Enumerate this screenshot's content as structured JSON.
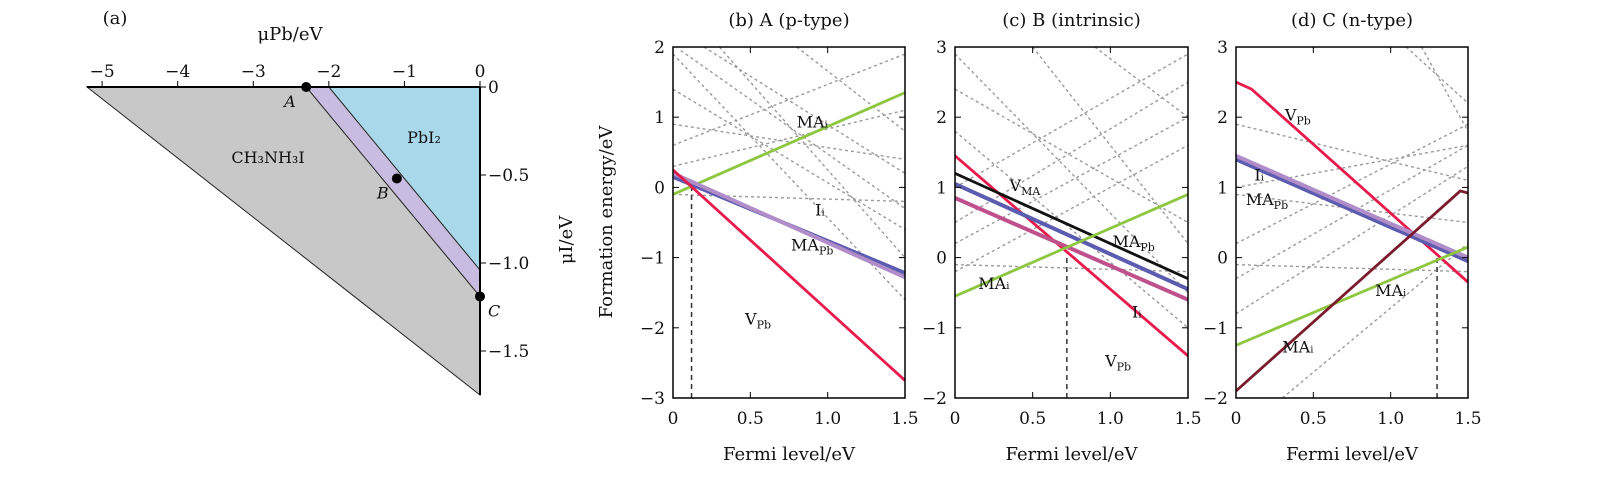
{
  "chart_data": [
    {
      "id": "a",
      "type": "area",
      "panel_label": "(a)",
      "xlabel": "μPb/eV",
      "ylabel": "μI/eV",
      "xlim": [
        -5.2,
        0
      ],
      "ylim": [
        -1.75,
        0
      ],
      "xticks": [
        "−5",
        "−4",
        "−3",
        "−2",
        "−1",
        "0"
      ],
      "yticks": [
        "0",
        "−0.5",
        "−1.0",
        "−1.5"
      ],
      "regions": [
        {
          "name": "CH3NH3I",
          "label": "CH₃NH₃I",
          "color": "#c8c8c8"
        },
        {
          "name": "stable",
          "color": "#c8bde0"
        },
        {
          "name": "PbI2",
          "label": "PbI₂",
          "color": "#a8d8ea"
        }
      ],
      "points": [
        {
          "label": "A",
          "x": -2.3,
          "y": 0
        },
        {
          "label": "B",
          "x": -1.1,
          "y": -0.52
        },
        {
          "label": "C",
          "x": 0,
          "y": -1.19
        }
      ]
    },
    {
      "id": "b",
      "type": "line",
      "title": "(b) A (p-type)",
      "xlabel": "Fermi level/eV",
      "ylabel": "Formation energy/eV",
      "xlim": [
        0,
        1.5
      ],
      "ylim": [
        -3,
        2
      ],
      "xticks": [
        "0",
        "0.5",
        "1.0",
        "1.5"
      ],
      "yticks": [
        "−3",
        "−2",
        "−1",
        "0",
        "1",
        "2"
      ],
      "fermi_level": 0.12,
      "series": [
        {
          "name": "MAᵢ",
          "color": "#8dc63f",
          "points": [
            [
              0,
              -0.1
            ],
            [
              1.5,
              1.35
            ]
          ]
        },
        {
          "name": "Iᵢ",
          "color": "#5b5bb0",
          "points": [
            [
              0,
              0.15
            ],
            [
              1.5,
              -1.22
            ]
          ]
        },
        {
          "name": "MAPb",
          "color": "#b08cc8",
          "points": [
            [
              0,
              0.2
            ],
            [
              1.5,
              -1.28
            ]
          ]
        },
        {
          "name": "VPb",
          "color": "#e8194b",
          "points": [
            [
              0,
              0.25
            ],
            [
              1.5,
              -2.75
            ]
          ]
        }
      ],
      "labels": [
        {
          "text": "MAᵢ",
          "x": 0.9,
          "y": 0.85
        },
        {
          "text": "Iᵢ",
          "x": 0.95,
          "y": -0.4
        },
        {
          "text": "MAPb",
          "x": 0.9,
          "y": -0.9
        },
        {
          "text": "VPb",
          "x": 0.55,
          "y": -1.95
        }
      ]
    },
    {
      "id": "c",
      "type": "line",
      "title": "(c) B (intrinsic)",
      "xlabel": "Fermi level/eV",
      "ylabel": "",
      "xlim": [
        0,
        1.5
      ],
      "ylim": [
        -2,
        3
      ],
      "xticks": [
        "0",
        "0.5",
        "1.0",
        "1.5"
      ],
      "yticks": [
        "−2",
        "−1",
        "0",
        "1",
        "2",
        "3"
      ],
      "fermi_level": 0.72,
      "series": [
        {
          "name": "VPb",
          "color": "#e8194b",
          "points": [
            [
              0,
              1.45
            ],
            [
              1.5,
              -1.4
            ]
          ]
        },
        {
          "name": "VMA",
          "color": "#111111",
          "points": [
            [
              0,
              1.2
            ],
            [
              1.5,
              -0.3
            ]
          ]
        },
        {
          "name": "MAPb",
          "color": "#5b5bb0",
          "points": [
            [
              0,
              1.05
            ],
            [
              1.5,
              -0.45
            ]
          ]
        },
        {
          "name": "Iᵢ",
          "color": "#c0508c",
          "points": [
            [
              0,
              0.85
            ],
            [
              1.5,
              -0.6
            ]
          ]
        },
        {
          "name": "MAᵢ",
          "color": "#8dc63f",
          "points": [
            [
              0,
              -0.55
            ],
            [
              1.5,
              0.9
            ]
          ]
        }
      ],
      "labels": [
        {
          "text": "VMA",
          "x": 0.45,
          "y": 0.95
        },
        {
          "text": "MAPb",
          "x": 1.15,
          "y": 0.15
        },
        {
          "text": "MAᵢ",
          "x": 0.25,
          "y": -0.45
        },
        {
          "text": "Iᵢ",
          "x": 1.17,
          "y": -0.85
        },
        {
          "text": "VPb",
          "x": 1.05,
          "y": -1.55
        }
      ]
    },
    {
      "id": "d",
      "type": "line",
      "title": "(d) C (n-type)",
      "xlabel": "Fermi level/eV",
      "ylabel": "",
      "xlim": [
        0,
        1.5
      ],
      "ylim": [
        -2,
        3
      ],
      "xticks": [
        "0",
        "0.5",
        "1.0",
        "1.5"
      ],
      "yticks": [
        "−2",
        "−1",
        "0",
        "1",
        "2",
        "3"
      ],
      "fermi_level": 1.3,
      "series": [
        {
          "name": "VPb",
          "color": "#e8194b",
          "points": [
            [
              0,
              2.5
            ],
            [
              0.1,
              2.4
            ],
            [
              1.5,
              -0.35
            ]
          ]
        },
        {
          "name": "Iᵢ",
          "color": "#5b5bb0",
          "points": [
            [
              0,
              1.4
            ],
            [
              1.5,
              -0.05
            ]
          ]
        },
        {
          "name": "MAPb",
          "color": "#b08cc8",
          "points": [
            [
              0,
              1.45
            ],
            [
              1.5,
              0.0
            ]
          ]
        },
        {
          "name": "MAᵢ",
          "color": "#8dc63f",
          "points": [
            [
              0,
              -1.25
            ],
            [
              1.5,
              0.15
            ]
          ]
        },
        {
          "name": "MAᵢ",
          "color": "#7a1c2e",
          "points": [
            [
              0,
              -1.9
            ],
            [
              1.4,
              0.85
            ],
            [
              1.45,
              0.95
            ],
            [
              1.5,
              0.92
            ]
          ]
        }
      ],
      "labels": [
        {
          "text": "VPb",
          "x": 0.4,
          "y": 1.95
        },
        {
          "text": "Iᵢ",
          "x": 0.15,
          "y": 1.1
        },
        {
          "text": "MAPb",
          "x": 0.2,
          "y": 0.75
        },
        {
          "text": "MAᵢ",
          "x": 1.0,
          "y": -0.55
        },
        {
          "text": "MAᵢ",
          "x": 0.4,
          "y": -1.35
        }
      ]
    }
  ]
}
